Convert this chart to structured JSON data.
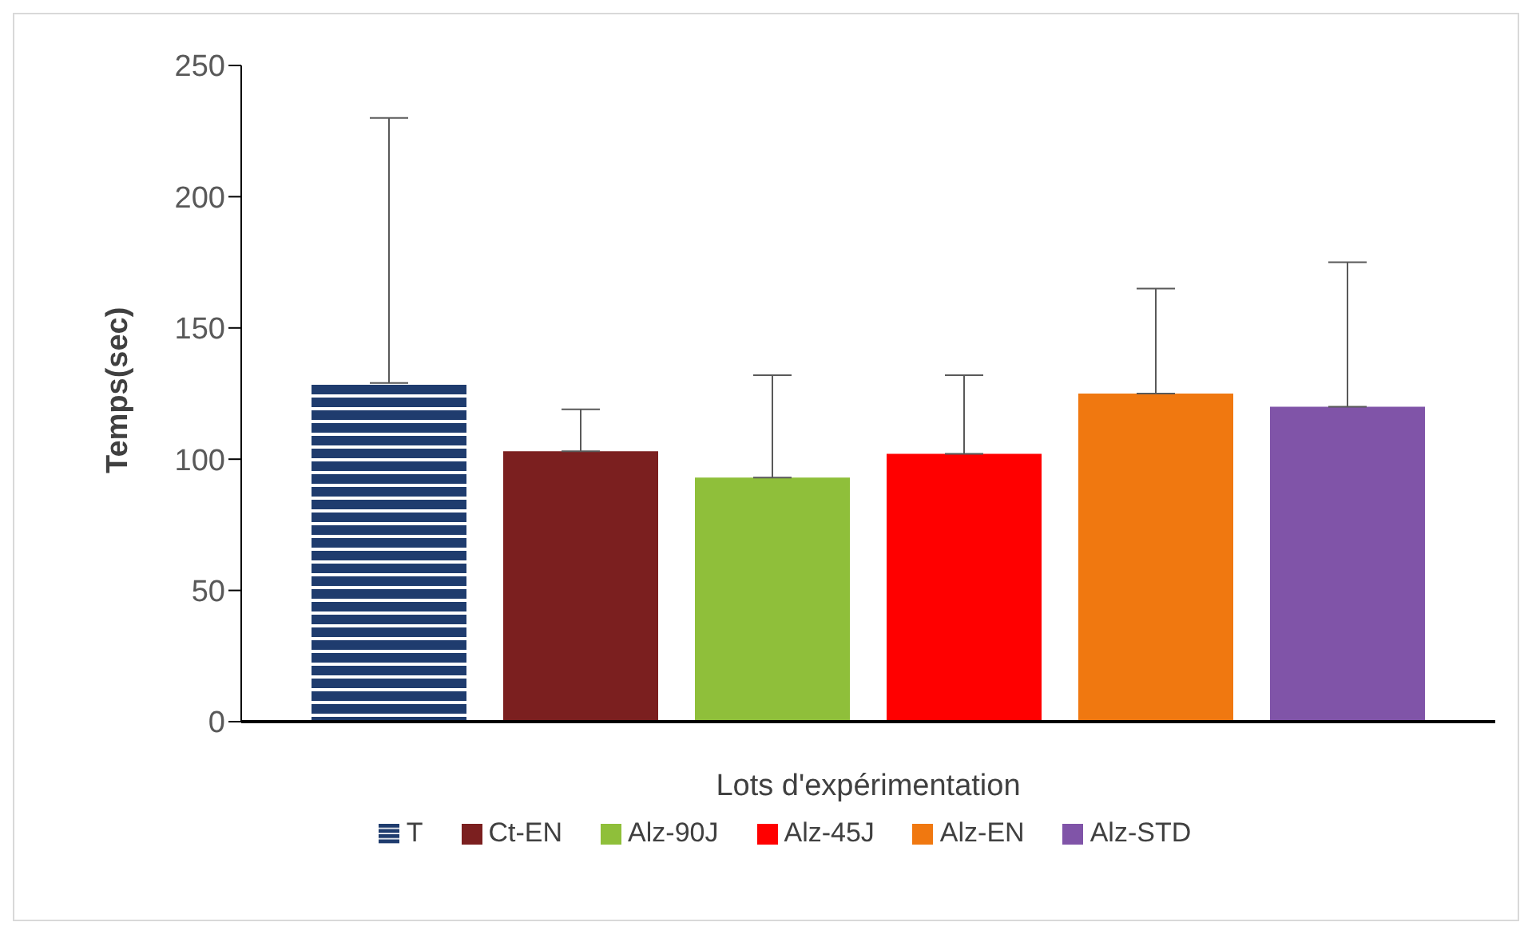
{
  "chart_data": {
    "type": "bar",
    "xlabel": "Lots d'expérimentation",
    "ylabel": "Temps(sec)",
    "categories": [
      null
    ],
    "series": [
      {
        "name": "T",
        "color": "#1f3c6e",
        "values": [
          129
        ],
        "errors": [
          [
            129,
            230
          ]
        ]
      },
      {
        "name": "Ct-EN",
        "color": "#7b1f1f",
        "values": [
          103
        ],
        "errors": [
          [
            103,
            119
          ]
        ]
      },
      {
        "name": "Alz-90J",
        "color": "#8fbf3a",
        "values": [
          93
        ],
        "errors": [
          [
            93,
            132
          ]
        ]
      },
      {
        "name": "Alz-45J",
        "color": "#ff0000",
        "values": [
          102
        ],
        "errors": [
          [
            102,
            132
          ]
        ]
      },
      {
        "name": "Alz-EN",
        "color": "#f07810",
        "values": [
          125
        ],
        "errors": [
          [
            125,
            165
          ]
        ]
      },
      {
        "name": "Alz-STD",
        "color": "#8054a8",
        "values": [
          120
        ],
        "errors": [
          [
            120,
            175
          ]
        ]
      }
    ],
    "ylim": [
      0,
      250
    ],
    "yticks": [
      0,
      50,
      100,
      150,
      200,
      250
    ],
    "legend": "bottom",
    "tick_labels": "y"
  }
}
